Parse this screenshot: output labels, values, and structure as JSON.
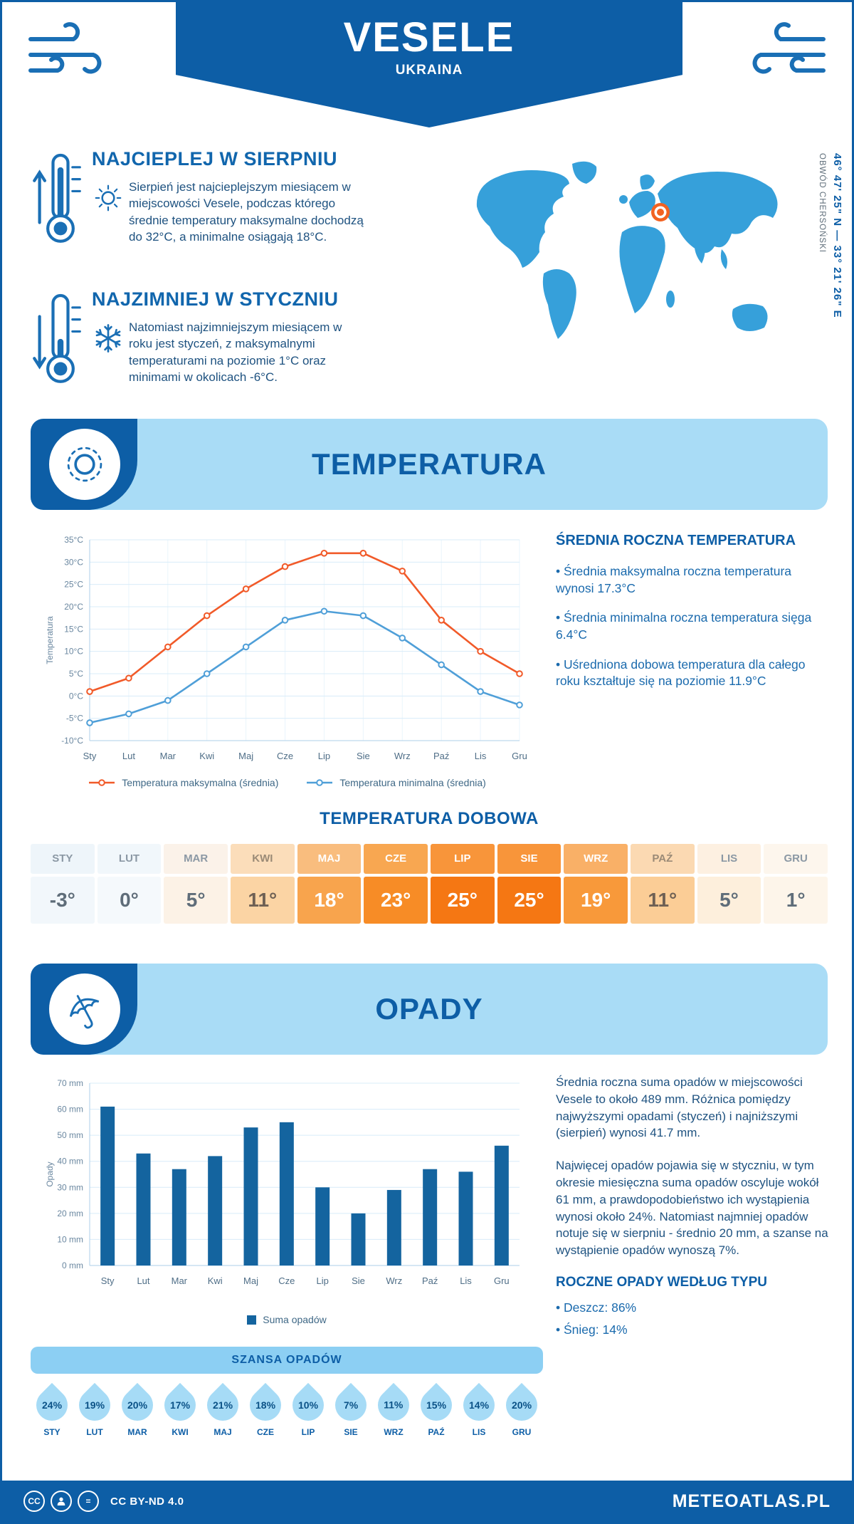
{
  "header": {
    "title": "VESELE",
    "subtitle": "UKRAINA",
    "coordinates": "46° 47' 25\" N — 33° 21' 26\" E",
    "region": "OBWÓD CHERSOŃSKI"
  },
  "intro": {
    "warm": {
      "heading": "NAJCIEPLEJ W SIERPNIU",
      "text": "Sierpień jest najcieplejszym miesiącem w miejscowości Vesele, podczas którego średnie temperatury maksymalne dochodzą do 32°C, a minimalne osiągają 18°C."
    },
    "cold": {
      "heading": "NAJZIMNIEJ W STYCZNIU",
      "text": "Natomiast najzimniejszym miesiącem w roku jest styczeń, z maksymalnymi temperaturami na poziomie 1°C oraz minimami w okolicach -6°C."
    }
  },
  "temperature": {
    "title": "TEMPERATURA",
    "annual_heading": "ŚREDNIA ROCZNA TEMPERATURA",
    "annual_bullets": [
      "Średnia maksymalna roczna temperatura wynosi 17.3°C",
      "Średnia minimalna roczna temperatura sięga 6.4°C",
      "Uśredniona dobowa temperatura dla całego roku kształtuje się na poziomie 11.9°C"
    ],
    "daily_heading": "TEMPERATURA DOBOWA",
    "daily": [
      {
        "month": "STY",
        "temp": "-3°",
        "header_bg": "#eef5fa",
        "bg": "#f2f7fb",
        "text": "#5f6d79",
        "header_text": "#8b98a4"
      },
      {
        "month": "LUT",
        "temp": "0°",
        "header_bg": "#f1f7fb",
        "bg": "#f5f9fc",
        "text": "#5f6d79",
        "header_text": "#8b98a4"
      },
      {
        "month": "MAR",
        "temp": "5°",
        "header_bg": "#fbf2e9",
        "bg": "#fcf2e6",
        "text": "#5f6d79",
        "header_text": "#8b98a4"
      },
      {
        "month": "KWI",
        "temp": "11°",
        "header_bg": "#fbddba",
        "bg": "#fbd4a4",
        "text": "#6e6054",
        "header_text": "#9a8a76"
      },
      {
        "month": "MAJ",
        "temp": "18°",
        "header_bg": "#f9bd7e",
        "bg": "#f8a44d",
        "text": "#ffffff",
        "header_text": "#ffffff"
      },
      {
        "month": "CZE",
        "temp": "23°",
        "header_bg": "#f8a751",
        "bg": "#f78c26",
        "text": "#ffffff",
        "header_text": "#ffffff"
      },
      {
        "month": "LIP",
        "temp": "25°",
        "header_bg": "#f8953a",
        "bg": "#f57713",
        "text": "#ffffff",
        "header_text": "#ffffff"
      },
      {
        "month": "SIE",
        "temp": "25°",
        "header_bg": "#f8953a",
        "bg": "#f57713",
        "text": "#ffffff",
        "header_text": "#ffffff"
      },
      {
        "month": "WRZ",
        "temp": "19°",
        "header_bg": "#f9b067",
        "bg": "#f8993a",
        "text": "#ffffff",
        "header_text": "#ffffff"
      },
      {
        "month": "PAŹ",
        "temp": "11°",
        "header_bg": "#fbd9b2",
        "bg": "#fbcd96",
        "text": "#6e6054",
        "header_text": "#9a8a76"
      },
      {
        "month": "LIS",
        "temp": "5°",
        "header_bg": "#fdf0e1",
        "bg": "#fdefdc",
        "text": "#5f6d79",
        "header_text": "#8b98a4"
      },
      {
        "month": "GRU",
        "temp": "1°",
        "header_bg": "#fdf6ed",
        "bg": "#fdf5ea",
        "text": "#5f6d79",
        "header_text": "#8b98a4"
      }
    ]
  },
  "chart_data": [
    {
      "type": "line",
      "x": [
        "Sty",
        "Lut",
        "Mar",
        "Kwi",
        "Maj",
        "Cze",
        "Lip",
        "Sie",
        "Wrz",
        "Paź",
        "Lis",
        "Gru"
      ],
      "series": [
        {
          "name": "Temperatura maksymalna (średnia)",
          "color": "#f15a29",
          "values": [
            1,
            4,
            11,
            18,
            24,
            29,
            32,
            32,
            28,
            17,
            10,
            5
          ]
        },
        {
          "name": "Temperatura minimalna (średnia)",
          "color": "#4f9fd8",
          "values": [
            -6,
            -4,
            -1,
            5,
            11,
            17,
            19,
            18,
            13,
            7,
            1,
            -2
          ]
        }
      ],
      "ylabel": "Temperatura",
      "ylim": [
        -10,
        35
      ],
      "ytick_step": 5,
      "yunit": "°C",
      "grid": true,
      "legend_position": "bottom"
    },
    {
      "type": "bar",
      "categories": [
        "Sty",
        "Lut",
        "Mar",
        "Kwi",
        "Maj",
        "Cze",
        "Lip",
        "Sie",
        "Wrz",
        "Paź",
        "Lis",
        "Gru"
      ],
      "values": [
        61,
        43,
        37,
        42,
        53,
        55,
        30,
        20,
        29,
        37,
        36,
        46
      ],
      "color": "#14649f",
      "ylabel": "Opady",
      "ylim": [
        0,
        70
      ],
      "ytick_step": 10,
      "yunit": " mm",
      "legend": "Suma opadów",
      "grid": true,
      "legend_position": "bottom"
    }
  ],
  "precipitation": {
    "title": "OPADY",
    "para1": "Średnia roczna suma opadów w miejscowości Vesele to około 489 mm. Różnica pomiędzy najwyższymi opadami (styczeń) i najniższymi (sierpień) wynosi 41.7 mm.",
    "para2": "Najwięcej opadów pojawia się w styczniu, w tym okresie miesięczna suma opadów oscyluje wokół 61 mm, a prawdopodobieństwo ich wystąpienia wynosi około 24%. Natomiast najmniej opadów notuje się w sierpniu - średnio 20 mm, a szanse na wystąpienie opadów wynoszą 7%.",
    "type_heading": "ROCZNE OPADY WEDŁUG TYPU",
    "type_bullets": [
      "Deszcz: 86%",
      "Śnieg: 14%"
    ],
    "chance_title": "SZANSA OPADÓW",
    "chances": [
      {
        "month": "STY",
        "value": "24%"
      },
      {
        "month": "LUT",
        "value": "19%"
      },
      {
        "month": "MAR",
        "value": "20%"
      },
      {
        "month": "KWI",
        "value": "17%"
      },
      {
        "month": "MAJ",
        "value": "21%"
      },
      {
        "month": "CZE",
        "value": "18%"
      },
      {
        "month": "LIP",
        "value": "10%"
      },
      {
        "month": "SIE",
        "value": "7%"
      },
      {
        "month": "WRZ",
        "value": "11%"
      },
      {
        "month": "PAŹ",
        "value": "15%"
      },
      {
        "month": "LIS",
        "value": "14%"
      },
      {
        "month": "GRU",
        "value": "20%"
      }
    ]
  },
  "footer": {
    "license": "CC BY-ND 4.0",
    "brand": "METEOATLAS.PL"
  },
  "colors": {
    "primary": "#0d5ea6",
    "light_banner": "#a9dcf6",
    "icon_blue": "#1a6fb5",
    "map_blue": "#36a0da",
    "marker_orange": "#f26222",
    "bar_blue": "#14649f",
    "max_line_orange": "#f15a29",
    "min_line_blue": "#4f9fd8"
  }
}
